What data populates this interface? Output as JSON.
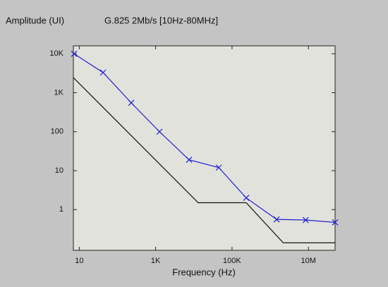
{
  "chart_data": {
    "type": "line",
    "ylabel": "Amplitude (UI)",
    "title": "G.825 2Mb/s [10Hz-80MHz]",
    "xlabel": "Frequency (Hz)",
    "xscale": "log",
    "yscale": "log",
    "grid": false,
    "xlim": [
      7,
      50000000
    ],
    "ylim": [
      0.09,
      16000
    ],
    "xticks": [
      10,
      {
        "value": 1000,
        "label": "1K"
      },
      {
        "value": 100000,
        "label": "100K"
      },
      {
        "value": 10000000,
        "label": "10M"
      }
    ],
    "yticks": [
      {
        "value": 10000,
        "label": "10K"
      },
      {
        "value": 1000,
        "label": "1K"
      },
      100,
      10,
      1
    ],
    "series": [
      {
        "color": "#1f1fd0",
        "marker": "x",
        "x": [
          7.3,
          42,
          230,
          1260,
          7500,
          45000,
          235000,
          1470000,
          8500000,
          50000000
        ],
        "values": [
          10000,
          3300,
          550,
          100,
          19,
          12,
          2,
          0.56,
          0.54,
          0.47
        ]
      },
      {
        "color": "#111111",
        "x": [
          7,
          13000,
          235000,
          2200000,
          50000000
        ],
        "values": [
          2450,
          1.5,
          1.5,
          0.14,
          0.14
        ]
      }
    ]
  }
}
